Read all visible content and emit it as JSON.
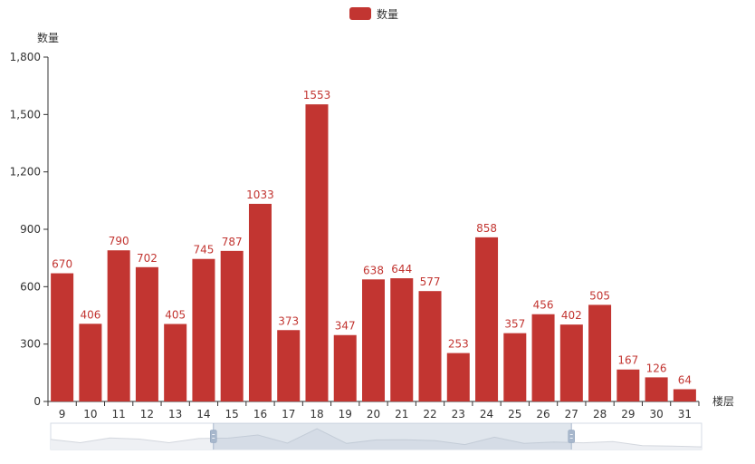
{
  "legend": {
    "items": [
      {
        "label": "数量",
        "color": "#c23531"
      }
    ]
  },
  "chart_data": {
    "type": "bar",
    "xlabel": "楼层",
    "ylabel": "数量",
    "ylim": [
      0,
      1800
    ],
    "yticks": [
      "0",
      "300",
      "600",
      "900",
      "1,200",
      "1,500",
      "1,800"
    ],
    "categories": [
      "9",
      "10",
      "11",
      "12",
      "13",
      "14",
      "15",
      "16",
      "17",
      "18",
      "19",
      "20",
      "21",
      "22",
      "23",
      "24",
      "25",
      "26",
      "27",
      "28",
      "29",
      "30",
      "31"
    ],
    "series": [
      {
        "name": "数量",
        "color": "#c23531",
        "values": [
          670,
          406,
          790,
          702,
          405,
          745,
          787,
          1033,
          373,
          1553,
          347,
          638,
          644,
          577,
          253,
          858,
          357,
          456,
          402,
          505,
          167,
          126,
          64
        ]
      }
    ],
    "show_data_labels": true,
    "grid": false,
    "legend_position": "top-center",
    "datazoom": {
      "type": "slider",
      "start": 0.25,
      "end": 0.8
    }
  }
}
